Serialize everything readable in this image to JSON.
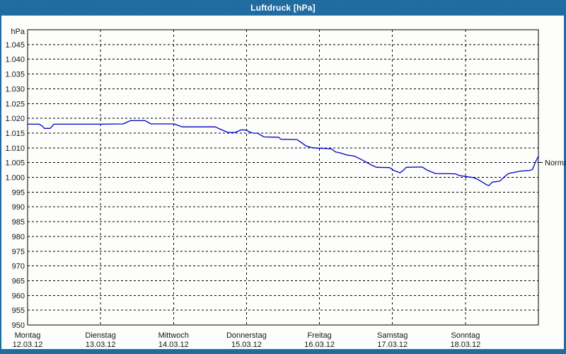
{
  "window": {
    "title": "Luftdruck [hPa]",
    "colors": {
      "titlebar": "#1d6ca2",
      "frame": "#1d6ca2",
      "plot_background": "#fdfdfb",
      "grid": "#000000",
      "text": "#141414"
    }
  },
  "chart_data": {
    "type": "line",
    "title": "Luftdruck [hPa]",
    "y_unit_label": "hPa",
    "ylim": [
      950,
      1050
    ],
    "ytick_step": 5,
    "grid": true,
    "legend_position": "none",
    "line_color": "#0000c8",
    "yticks": [
      {
        "value": 1045,
        "label": "1.045"
      },
      {
        "value": 1040,
        "label": "1.040"
      },
      {
        "value": 1035,
        "label": "1.035"
      },
      {
        "value": 1030,
        "label": "1.030"
      },
      {
        "value": 1025,
        "label": "1.025"
      },
      {
        "value": 1020,
        "label": "1.020"
      },
      {
        "value": 1015,
        "label": "1.015"
      },
      {
        "value": 1010,
        "label": "1.010"
      },
      {
        "value": 1005,
        "label": "1.005"
      },
      {
        "value": 1000,
        "label": "1.000"
      },
      {
        "value": 995,
        "label": "995"
      },
      {
        "value": 990,
        "label": "990"
      },
      {
        "value": 985,
        "label": "985"
      },
      {
        "value": 980,
        "label": "980"
      },
      {
        "value": 975,
        "label": "975"
      },
      {
        "value": 970,
        "label": "970"
      },
      {
        "value": 965,
        "label": "965"
      },
      {
        "value": 960,
        "label": "960"
      },
      {
        "value": 955,
        "label": "955"
      },
      {
        "value": 950,
        "label": "950"
      }
    ],
    "x_days": [
      {
        "name": "Montag",
        "date": "12.03.12"
      },
      {
        "name": "Dienstag",
        "date": "13.03.12"
      },
      {
        "name": "Mittwoch",
        "date": "14.03.12"
      },
      {
        "name": "Donnerstag",
        "date": "15.03.12"
      },
      {
        "name": "Freitag",
        "date": "16.03.12"
      },
      {
        "name": "Samstag",
        "date": "17.03.12"
      },
      {
        "name": "Sonntag",
        "date": "18.03.12"
      }
    ],
    "normal_marker": {
      "label": "Normal",
      "value": 1005
    },
    "series": [
      {
        "name": "Luftdruck",
        "unit": "hPa",
        "x_unit": "days_from_monday",
        "points": [
          [
            0.0,
            1018.0
          ],
          [
            0.16,
            1018.0
          ],
          [
            0.2,
            1017.4
          ],
          [
            0.23,
            1016.6
          ],
          [
            0.31,
            1016.6
          ],
          [
            0.36,
            1018.0
          ],
          [
            1.0,
            1018.0
          ],
          [
            1.31,
            1018.1
          ],
          [
            1.41,
            1019.2
          ],
          [
            1.61,
            1019.2
          ],
          [
            1.69,
            1018.1
          ],
          [
            2.01,
            1018.1
          ],
          [
            2.06,
            1017.6
          ],
          [
            2.12,
            1017.1
          ],
          [
            2.57,
            1017.1
          ],
          [
            2.66,
            1016.1
          ],
          [
            2.72,
            1015.5
          ],
          [
            2.75,
            1015.2
          ],
          [
            2.84,
            1015.2
          ],
          [
            2.93,
            1016.1
          ],
          [
            3.0,
            1016.0
          ],
          [
            3.05,
            1015.3
          ],
          [
            3.08,
            1015.0
          ],
          [
            3.16,
            1014.9
          ],
          [
            3.19,
            1014.4
          ],
          [
            3.24,
            1013.7
          ],
          [
            3.44,
            1013.6
          ],
          [
            3.47,
            1012.9
          ],
          [
            3.69,
            1012.8
          ],
          [
            3.75,
            1011.8
          ],
          [
            3.82,
            1010.6
          ],
          [
            3.89,
            1010.1
          ],
          [
            3.96,
            1009.9
          ],
          [
            4.16,
            1009.7
          ],
          [
            4.22,
            1008.6
          ],
          [
            4.28,
            1008.3
          ],
          [
            4.37,
            1007.6
          ],
          [
            4.48,
            1007.2
          ],
          [
            4.56,
            1006.2
          ],
          [
            4.63,
            1005.3
          ],
          [
            4.71,
            1004.2
          ],
          [
            4.78,
            1003.4
          ],
          [
            4.96,
            1003.3
          ],
          [
            5.02,
            1002.3
          ],
          [
            5.07,
            1001.9
          ],
          [
            5.1,
            1001.5
          ],
          [
            5.14,
            1002.2
          ],
          [
            5.19,
            1003.4
          ],
          [
            5.41,
            1003.5
          ],
          [
            5.47,
            1002.5
          ],
          [
            5.55,
            1001.7
          ],
          [
            5.59,
            1001.3
          ],
          [
            5.86,
            1001.2
          ],
          [
            5.92,
            1000.6
          ],
          [
            6.0,
            1000.3
          ],
          [
            6.11,
            999.9
          ],
          [
            6.17,
            999.3
          ],
          [
            6.23,
            998.4
          ],
          [
            6.29,
            997.5
          ],
          [
            6.32,
            997.2
          ],
          [
            6.37,
            998.4
          ],
          [
            6.47,
            998.7
          ],
          [
            6.53,
            1000.1
          ],
          [
            6.59,
            1001.3
          ],
          [
            6.67,
            1001.7
          ],
          [
            6.75,
            1002.1
          ],
          [
            6.88,
            1002.3
          ],
          [
            6.92,
            1002.7
          ],
          [
            6.96,
            1005.2
          ],
          [
            7.0,
            1007.2
          ]
        ]
      }
    ]
  }
}
